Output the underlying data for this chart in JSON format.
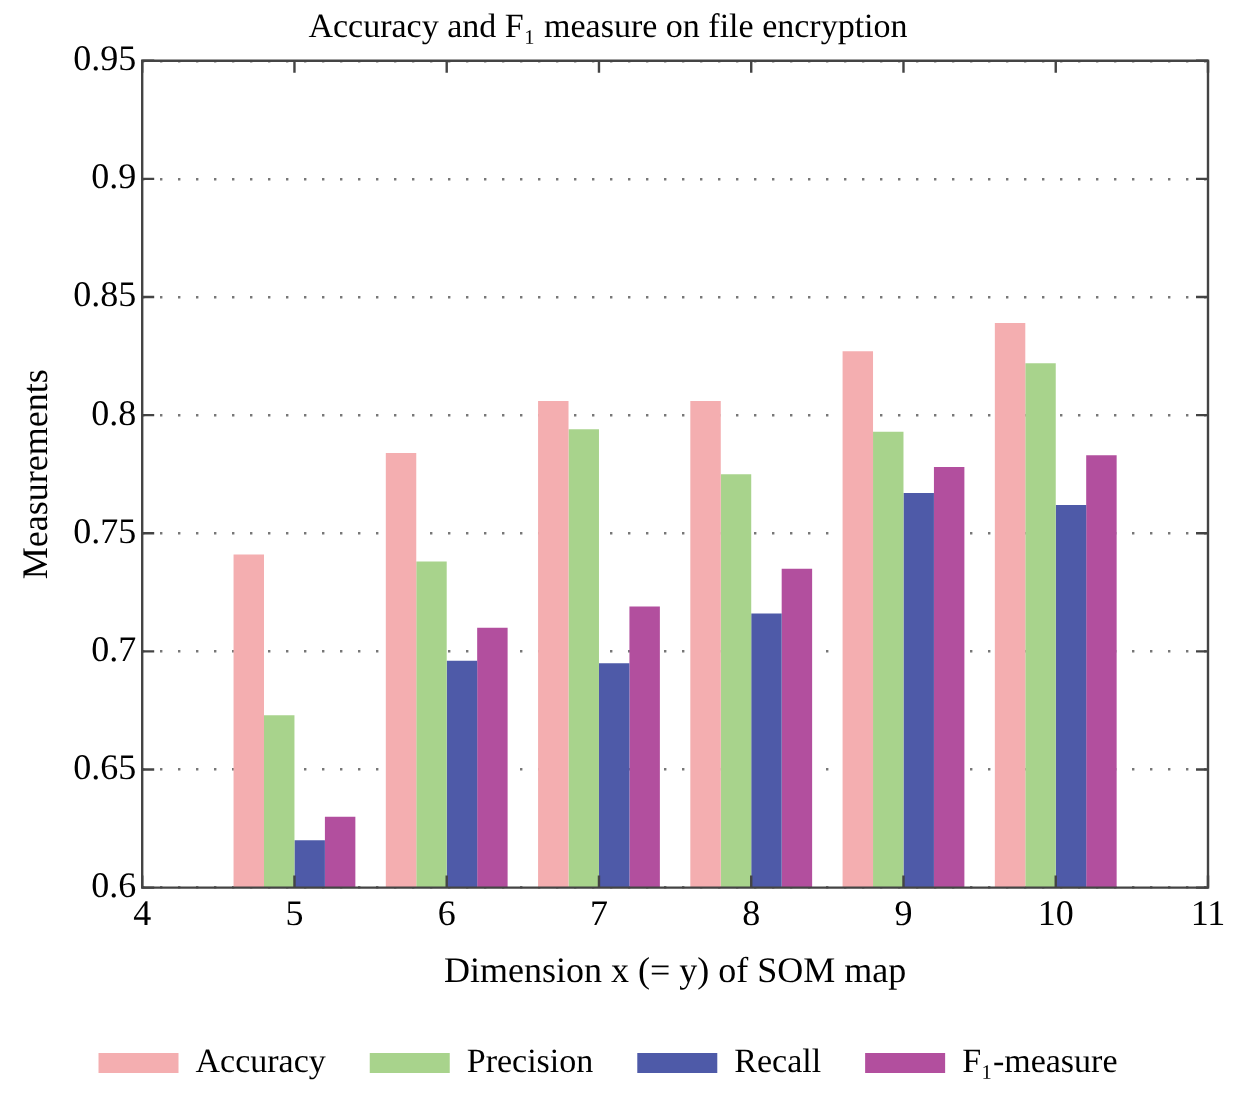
{
  "chart_data": {
    "type": "bar",
    "title": "Accuracy and F₁ measure on file encryption",
    "xlabel": "Dimension x (= y) of SOM map",
    "ylabel": "Measurements",
    "x": [
      5,
      6,
      7,
      8,
      9,
      10
    ],
    "series": [
      {
        "name": "Accuracy",
        "color": "#f4aeb0",
        "values": [
          0.741,
          0.784,
          0.806,
          0.806,
          0.827,
          0.839
        ]
      },
      {
        "name": "Precision",
        "color": "#a8d38c",
        "values": [
          0.673,
          0.738,
          0.794,
          0.775,
          0.793,
          0.822
        ]
      },
      {
        "name": "Recall",
        "color": "#4e5aa8",
        "values": [
          0.62,
          0.696,
          0.695,
          0.716,
          0.767,
          0.762
        ]
      },
      {
        "name": "F₁-measure",
        "color": "#b24f9e",
        "values": [
          0.63,
          0.71,
          0.719,
          0.735,
          0.778,
          0.783
        ]
      }
    ],
    "xlim": [
      4,
      11
    ],
    "xticks": [
      4,
      5,
      6,
      7,
      8,
      9,
      10,
      11
    ],
    "ylim": [
      0.6,
      0.95
    ],
    "yticks": [
      0.6,
      0.65,
      0.7,
      0.75,
      0.8,
      0.85,
      0.9,
      0.95
    ],
    "grid": "y",
    "legend": "bottom"
  }
}
